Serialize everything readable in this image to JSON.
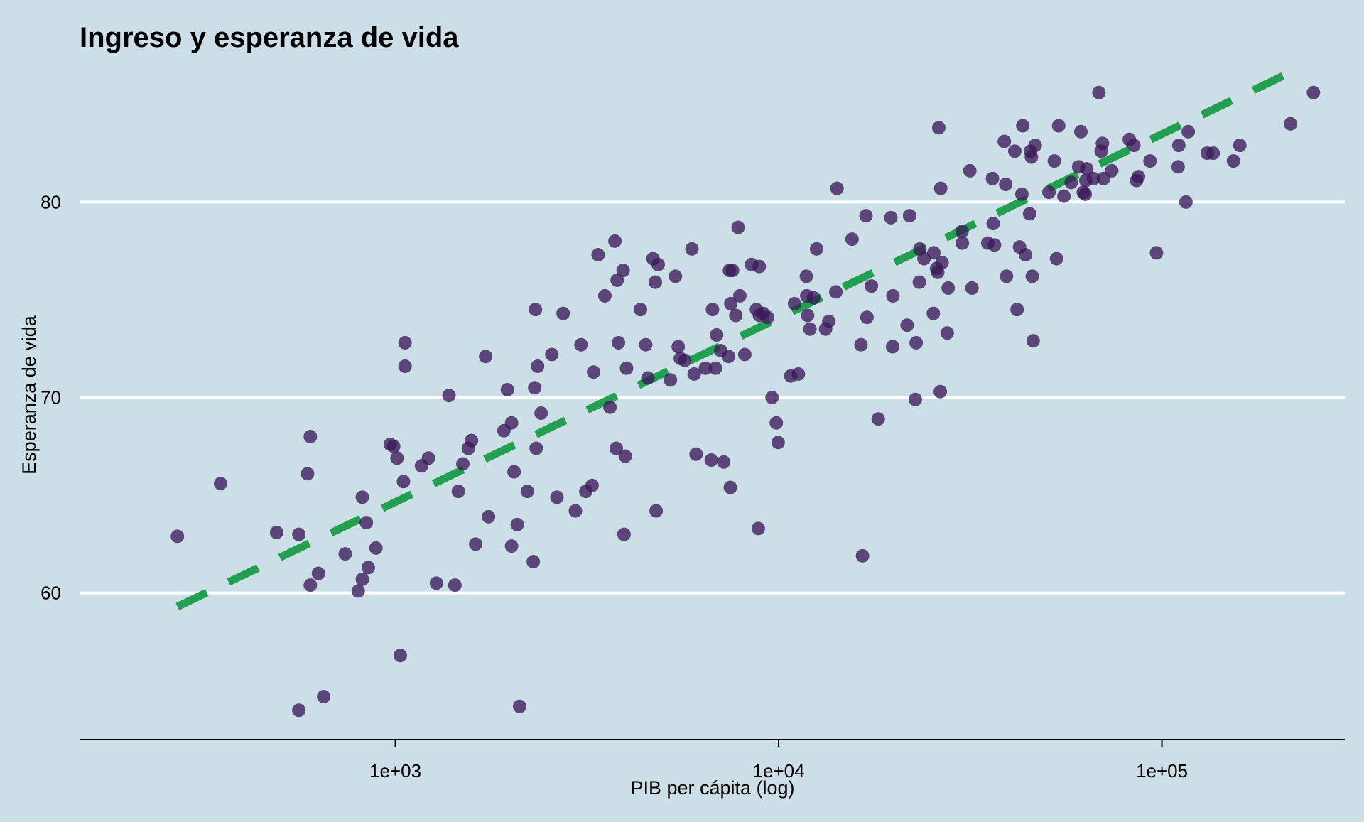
{
  "chart_data": {
    "type": "scatter",
    "title": "Ingreso y esperanza de vida",
    "xlabel": "PIB per cápita (log)",
    "ylabel": "Esperanza de vida",
    "x_scale": "log10",
    "xlim": [
      150,
      300000
    ],
    "ylim": [
      52.5,
      87.5
    ],
    "x_ticks": [
      {
        "value": 1000,
        "label": "1e+03"
      },
      {
        "value": 10000,
        "label": "1e+04"
      },
      {
        "value": 100000,
        "label": "1e+05"
      }
    ],
    "y_ticks": [
      {
        "value": 60,
        "label": "60"
      },
      {
        "value": 70,
        "label": "70"
      },
      {
        "value": 80,
        "label": "80"
      }
    ],
    "grid": "horizontal",
    "colors": {
      "background": "#ccdfe6",
      "points": "#3b1a5a",
      "trend": "#23a04f",
      "grid": "#ffffff",
      "axis": "#000000"
    },
    "trend_line": {
      "style": "dashed",
      "x": [
        270,
        220000
      ],
      "y": [
        59.3,
        86.7
      ]
    },
    "points": [
      [
        270,
        62.9
      ],
      [
        350,
        65.6
      ],
      [
        490,
        63.1
      ],
      [
        560,
        63.0
      ],
      [
        560,
        54.0
      ],
      [
        590,
        66.1
      ],
      [
        600,
        68.0
      ],
      [
        600,
        60.4
      ],
      [
        630,
        61.0
      ],
      [
        650,
        54.7
      ],
      [
        740,
        62.0
      ],
      [
        800,
        60.1
      ],
      [
        820,
        64.9
      ],
      [
        820,
        60.7
      ],
      [
        840,
        63.6
      ],
      [
        850,
        61.3
      ],
      [
        890,
        62.3
      ],
      [
        970,
        67.6
      ],
      [
        990,
        67.5
      ],
      [
        1010,
        66.9
      ],
      [
        1030,
        56.8
      ],
      [
        1050,
        65.7
      ],
      [
        1060,
        72.8
      ],
      [
        1060,
        71.6
      ],
      [
        1170,
        66.5
      ],
      [
        1220,
        66.9
      ],
      [
        1280,
        60.5
      ],
      [
        1380,
        70.1
      ],
      [
        1430,
        60.4
      ],
      [
        1460,
        65.2
      ],
      [
        1500,
        66.6
      ],
      [
        1550,
        67.4
      ],
      [
        1580,
        67.8
      ],
      [
        1620,
        62.5
      ],
      [
        1720,
        72.1
      ],
      [
        1750,
        63.9
      ],
      [
        1920,
        68.3
      ],
      [
        1960,
        70.4
      ],
      [
        2010,
        68.7
      ],
      [
        2010,
        62.4
      ],
      [
        2040,
        66.2
      ],
      [
        2080,
        63.5
      ],
      [
        2110,
        54.2
      ],
      [
        2210,
        65.2
      ],
      [
        2290,
        61.6
      ],
      [
        2310,
        70.5
      ],
      [
        2320,
        74.5
      ],
      [
        2330,
        67.4
      ],
      [
        2350,
        71.6
      ],
      [
        2400,
        69.2
      ],
      [
        2560,
        72.2
      ],
      [
        2640,
        64.9
      ],
      [
        2740,
        74.3
      ],
      [
        2950,
        64.2
      ],
      [
        3050,
        72.7
      ],
      [
        3140,
        65.2
      ],
      [
        3260,
        65.5
      ],
      [
        3290,
        71.3
      ],
      [
        3380,
        77.3
      ],
      [
        3520,
        75.2
      ],
      [
        3630,
        69.5
      ],
      [
        3740,
        78.0
      ],
      [
        3770,
        67.4
      ],
      [
        3790,
        76.0
      ],
      [
        3820,
        72.8
      ],
      [
        3930,
        76.5
      ],
      [
        3950,
        63.0
      ],
      [
        3980,
        67.0
      ],
      [
        4010,
        71.5
      ],
      [
        4360,
        74.5
      ],
      [
        4500,
        72.7
      ],
      [
        4560,
        71.0
      ],
      [
        4700,
        77.1
      ],
      [
        4770,
        75.9
      ],
      [
        4790,
        64.2
      ],
      [
        4850,
        76.8
      ],
      [
        5220,
        70.9
      ],
      [
        5380,
        76.2
      ],
      [
        5470,
        72.6
      ],
      [
        5540,
        72.0
      ],
      [
        5690,
        71.9
      ],
      [
        5940,
        77.6
      ],
      [
        6020,
        71.2
      ],
      [
        6090,
        67.1
      ],
      [
        6440,
        71.5
      ],
      [
        6670,
        66.8
      ],
      [
        6720,
        74.5
      ],
      [
        6840,
        71.5
      ],
      [
        6890,
        73.2
      ],
      [
        7060,
        72.4
      ],
      [
        7190,
        66.7
      ],
      [
        7400,
        72.1
      ],
      [
        7440,
        76.5
      ],
      [
        7480,
        65.4
      ],
      [
        7500,
        74.8
      ],
      [
        7580,
        76.5
      ],
      [
        7730,
        74.2
      ],
      [
        7840,
        78.7
      ],
      [
        7920,
        75.2
      ],
      [
        8160,
        72.2
      ],
      [
        8500,
        76.8
      ],
      [
        8750,
        74.5
      ],
      [
        8850,
        63.3
      ],
      [
        8900,
        76.7
      ],
      [
        8910,
        74.2
      ],
      [
        9110,
        74.3
      ],
      [
        9360,
        74.1
      ],
      [
        9610,
        70.0
      ],
      [
        9860,
        68.7
      ],
      [
        9970,
        67.7
      ],
      [
        10750,
        71.1
      ],
      [
        11000,
        74.8
      ],
      [
        11260,
        71.2
      ],
      [
        11810,
        76.2
      ],
      [
        11840,
        75.2
      ],
      [
        11900,
        74.2
      ],
      [
        12070,
        73.5
      ],
      [
        12330,
        75.1
      ],
      [
        12560,
        77.6
      ],
      [
        13260,
        73.5
      ],
      [
        13520,
        73.9
      ],
      [
        14100,
        75.4
      ],
      [
        14200,
        80.7
      ],
      [
        15540,
        78.1
      ],
      [
        16400,
        72.7
      ],
      [
        16550,
        61.9
      ],
      [
        16900,
        79.3
      ],
      [
        17000,
        74.1
      ],
      [
        17460,
        75.7
      ],
      [
        18190,
        68.9
      ],
      [
        19620,
        79.2
      ],
      [
        19830,
        72.6
      ],
      [
        19870,
        75.2
      ],
      [
        21640,
        73.7
      ],
      [
        21950,
        79.3
      ],
      [
        22730,
        69.9
      ],
      [
        22840,
        72.8
      ],
      [
        23280,
        75.9
      ],
      [
        23360,
        77.6
      ],
      [
        23940,
        77.1
      ],
      [
        25330,
        74.3
      ],
      [
        25400,
        77.4
      ],
      [
        25830,
        76.6
      ],
      [
        26000,
        76.4
      ],
      [
        26170,
        83.8
      ],
      [
        26400,
        70.3
      ],
      [
        26470,
        80.7
      ],
      [
        26690,
        76.9
      ],
      [
        27530,
        73.3
      ],
      [
        27690,
        75.6
      ],
      [
        30090,
        78.5
      ],
      [
        30150,
        77.9
      ],
      [
        31540,
        81.6
      ],
      [
        31940,
        75.6
      ],
      [
        35130,
        77.9
      ],
      [
        36130,
        81.2
      ],
      [
        36290,
        78.9
      ],
      [
        36570,
        77.8
      ],
      [
        38790,
        83.1
      ],
      [
        39120,
        80.9
      ],
      [
        39310,
        76.2
      ],
      [
        41310,
        82.6
      ],
      [
        41890,
        74.5
      ],
      [
        42520,
        77.7
      ],
      [
        43110,
        80.4
      ],
      [
        43340,
        83.9
      ],
      [
        44070,
        77.3
      ],
      [
        45160,
        79.4
      ],
      [
        45380,
        82.6
      ],
      [
        45650,
        82.3
      ],
      [
        45890,
        76.2
      ],
      [
        46150,
        72.9
      ],
      [
        46700,
        82.9
      ],
      [
        50720,
        80.5
      ],
      [
        52390,
        82.1
      ],
      [
        53090,
        77.1
      ],
      [
        53770,
        83.9
      ],
      [
        55500,
        80.3
      ],
      [
        57980,
        81.0
      ],
      [
        60620,
        81.8
      ],
      [
        61450,
        83.6
      ],
      [
        62360,
        80.5
      ],
      [
        63080,
        80.4
      ],
      [
        63310,
        81.1
      ],
      [
        63640,
        81.7
      ],
      [
        66250,
        81.2
      ],
      [
        68480,
        85.6
      ],
      [
        69420,
        82.6
      ],
      [
        69950,
        83.0
      ],
      [
        70380,
        81.2
      ],
      [
        73990,
        81.6
      ],
      [
        82190,
        83.2
      ],
      [
        84490,
        82.9
      ],
      [
        85880,
        81.1
      ],
      [
        86860,
        81.3
      ],
      [
        93080,
        82.1
      ],
      [
        96770,
        77.4
      ],
      [
        110210,
        81.8
      ],
      [
        110670,
        82.9
      ],
      [
        115500,
        80.0
      ],
      [
        117130,
        83.6
      ],
      [
        131320,
        82.5
      ],
      [
        136030,
        82.5
      ],
      [
        153650,
        82.1
      ],
      [
        159670,
        82.9
      ],
      [
        216500,
        84.0
      ],
      [
        248470,
        85.6
      ]
    ]
  }
}
